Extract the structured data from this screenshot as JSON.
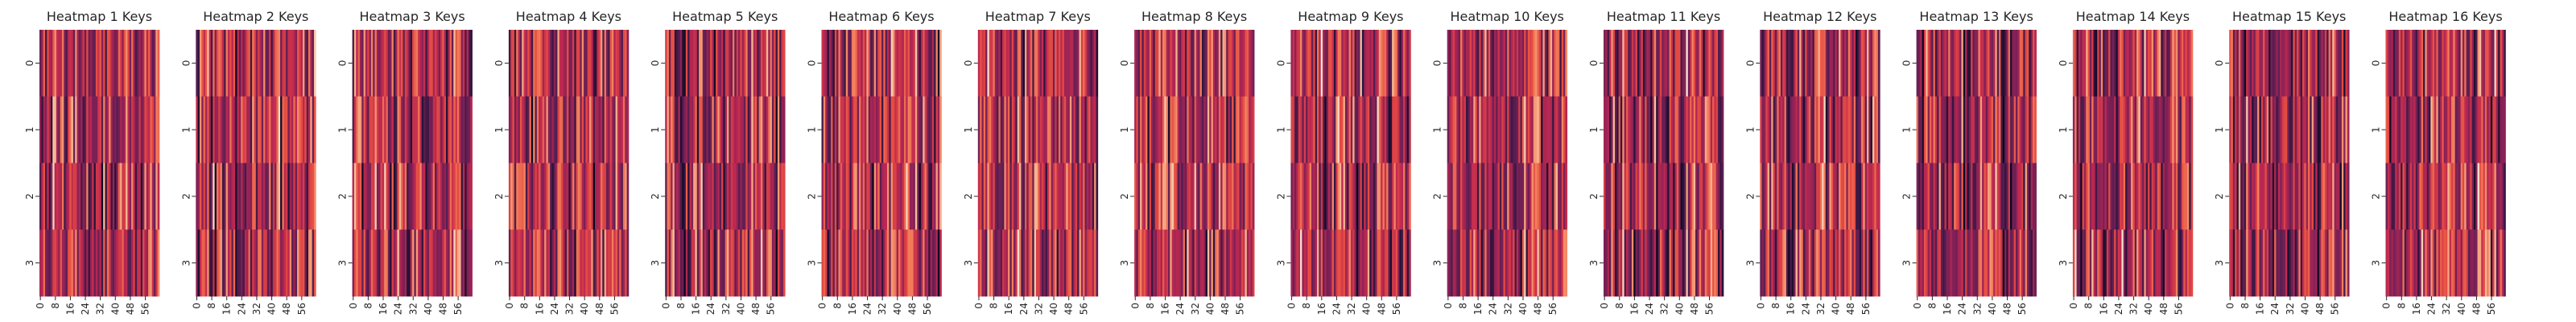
{
  "chart_data": [
    {
      "type": "heatmap",
      "title": "Heatmap 1 Keys",
      "seed": 1
    },
    {
      "type": "heatmap",
      "title": "Heatmap 2 Keys",
      "seed": 2
    },
    {
      "type": "heatmap",
      "title": "Heatmap 3 Keys",
      "seed": 3
    },
    {
      "type": "heatmap",
      "title": "Heatmap 4 Keys",
      "seed": 4
    },
    {
      "type": "heatmap",
      "title": "Heatmap 5 Keys",
      "seed": 5
    },
    {
      "type": "heatmap",
      "title": "Heatmap 6 Keys",
      "seed": 6
    },
    {
      "type": "heatmap",
      "title": "Heatmap 7 Keys",
      "seed": 7
    },
    {
      "type": "heatmap",
      "title": "Heatmap 8 Keys",
      "seed": 8
    },
    {
      "type": "heatmap",
      "title": "Heatmap 9 Keys",
      "seed": 9
    },
    {
      "type": "heatmap",
      "title": "Heatmap 10 Keys",
      "seed": 10
    },
    {
      "type": "heatmap",
      "title": "Heatmap 11 Keys",
      "seed": 11
    },
    {
      "type": "heatmap",
      "title": "Heatmap 12 Keys",
      "seed": 12
    },
    {
      "type": "heatmap",
      "title": "Heatmap 13 Keys",
      "seed": 13
    },
    {
      "type": "heatmap",
      "title": "Heatmap 14 Keys",
      "seed": 14
    },
    {
      "type": "heatmap",
      "title": "Heatmap 15 Keys",
      "seed": 15
    },
    {
      "type": "heatmap",
      "title": "Heatmap 16 Keys",
      "seed": 16
    }
  ],
  "shared": {
    "rows": 4,
    "cols": 64,
    "row_tick_labels": [
      "0",
      "1",
      "2",
      "3"
    ],
    "col_tick_labels": [
      "0",
      "8",
      "16",
      "24",
      "32",
      "40",
      "48",
      "56"
    ],
    "col_tick_positions": [
      0,
      8,
      16,
      24,
      32,
      40,
      48,
      56
    ],
    "colormap": "rocket",
    "colorbar": false
  }
}
